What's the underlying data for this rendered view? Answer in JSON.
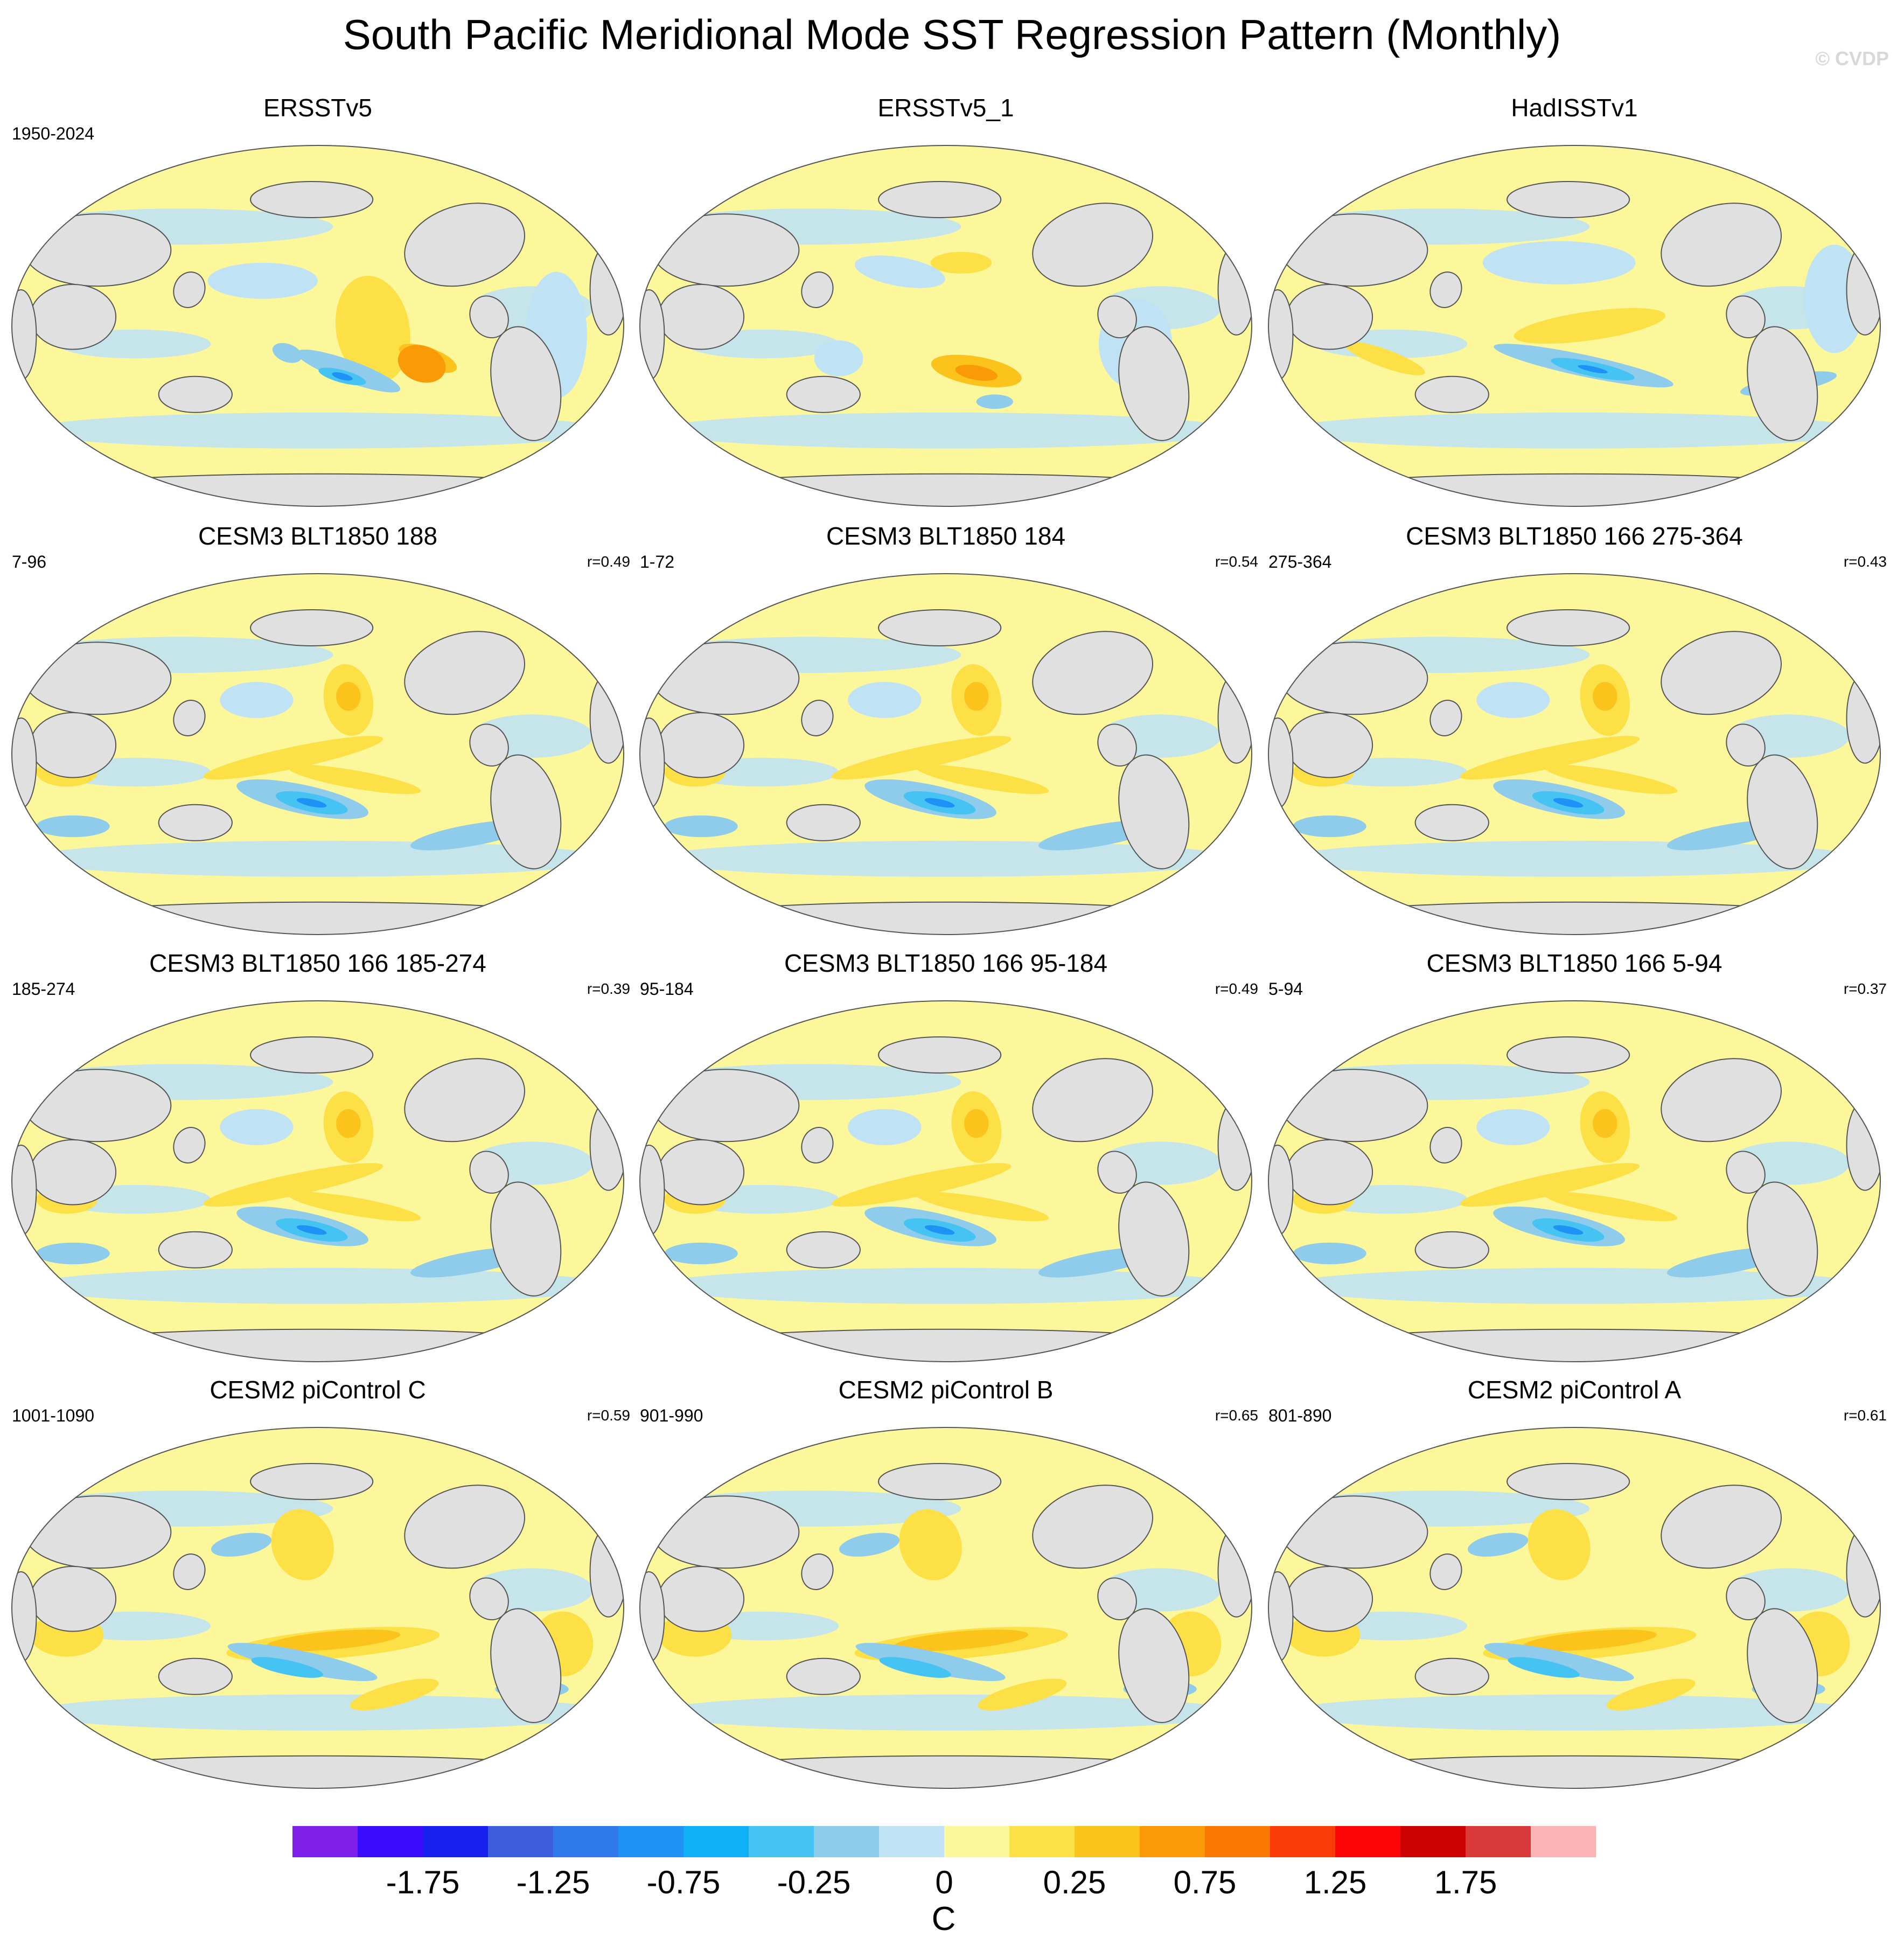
{
  "title": "South Pacific Meridional Mode SST Regression Pattern (Monthly)",
  "watermark": "© CVDP",
  "panels": [
    {
      "title": "ERSSTv5",
      "period": "1950-2024",
      "corr": "",
      "variant": 0
    },
    {
      "title": "ERSSTv5_1",
      "period": "",
      "corr": "",
      "variant": 1
    },
    {
      "title": "HadISSTv1",
      "period": "",
      "corr": "",
      "variant": 2
    },
    {
      "title": "CESM3 BLT1850 188",
      "period": "7-96",
      "corr": "r=0.49",
      "variant": 3
    },
    {
      "title": "CESM3 BLT1850 184",
      "period": "1-72",
      "corr": "r=0.54",
      "variant": 3
    },
    {
      "title": "CESM3 BLT1850 166 275-364",
      "period": "275-364",
      "corr": "r=0.43",
      "variant": 3
    },
    {
      "title": "CESM3 BLT1850 166 185-274",
      "period": "185-274",
      "corr": "r=0.39",
      "variant": 3
    },
    {
      "title": "CESM3 BLT1850 166 95-184",
      "period": "95-184",
      "corr": "r=0.49",
      "variant": 3
    },
    {
      "title": "CESM3 BLT1850 166 5-94",
      "period": "5-94",
      "corr": "r=0.37",
      "variant": 3
    },
    {
      "title": "CESM2 piControl C",
      "period": "1001-1090",
      "corr": "r=0.59",
      "variant": 4
    },
    {
      "title": "CESM2 piControl B",
      "period": "901-990",
      "corr": "r=0.65",
      "variant": 4
    },
    {
      "title": "CESM2 piControl A",
      "period": "801-890",
      "corr": "r=0.61",
      "variant": 4
    }
  ],
  "chart_data": {
    "type": "heatmap",
    "title": "South Pacific Meridional Mode SST Regression Pattern (Monthly)",
    "units": "C",
    "projection": "Robinson, Pacific-centered",
    "colorbar_levels": [
      -2.0,
      -1.75,
      -1.5,
      -1.25,
      -1.0,
      -0.75,
      -0.5,
      -0.25,
      -0.1,
      0,
      0.1,
      0.25,
      0.5,
      0.75,
      1.0,
      1.25,
      1.5,
      1.75,
      2.0
    ],
    "colorbar_colors": [
      "#7d1fe8",
      "#3a0cfb",
      "#1820f0",
      "#3c5ede",
      "#3079ec",
      "#2192f5",
      "#0fb0f5",
      "#45c3f2",
      "#8fcbeb",
      "#bfe2f4",
      "#fdf79c",
      "#fde046",
      "#fcc31d",
      "#fb9a07",
      "#fb7704",
      "#fb3b05",
      "#fb0505",
      "#cc0000",
      "#d83a3a",
      "#fcb4b4"
    ],
    "colorbar_tick_labels": [
      "-1.75",
      "-1.25",
      "-0.75",
      "-0.25",
      "0",
      "0.25",
      "0.75",
      "1.25",
      "1.75"
    ],
    "colorbar_tick_values": [
      -1.75,
      -1.25,
      -0.75,
      -0.25,
      0,
      0.25,
      0.75,
      1.25,
      1.75
    ]
  }
}
